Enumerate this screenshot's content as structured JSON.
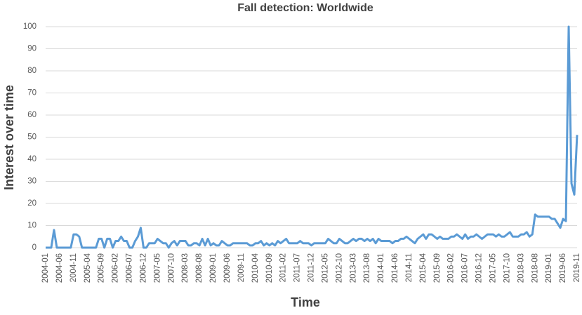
{
  "chart_data": {
    "type": "line",
    "title": "Fall detection: Worldwide",
    "x_label": "Time",
    "y_label": "Interest over time",
    "categories": [
      "2004-01",
      null,
      null,
      null,
      null,
      "2004-06",
      null,
      null,
      null,
      null,
      "2004-11",
      null,
      null,
      null,
      null,
      "2005-04",
      null,
      null,
      null,
      null,
      "2005-09",
      null,
      null,
      null,
      null,
      "2006-02",
      null,
      null,
      null,
      null,
      "2006-07",
      null,
      null,
      null,
      null,
      "2006-12",
      null,
      null,
      null,
      null,
      "2007-05",
      null,
      null,
      null,
      null,
      "2007-10",
      null,
      null,
      null,
      null,
      "2008-03",
      null,
      null,
      null,
      null,
      "2008-08",
      null,
      null,
      null,
      null,
      "2009-01",
      null,
      null,
      null,
      null,
      "2009-06",
      null,
      null,
      null,
      null,
      "2009-11",
      null,
      null,
      null,
      null,
      "2010-04",
      null,
      null,
      null,
      null,
      "2010-09",
      null,
      null,
      null,
      null,
      "2011-02",
      null,
      null,
      null,
      null,
      "2011-07",
      null,
      null,
      null,
      null,
      "2011-12",
      null,
      null,
      null,
      null,
      "2012-05",
      null,
      null,
      null,
      null,
      "2012-10",
      null,
      null,
      null,
      null,
      "2013-03",
      null,
      null,
      null,
      null,
      "2013-08",
      null,
      null,
      null,
      null,
      "2014-01",
      null,
      null,
      null,
      null,
      "2014-06",
      null,
      null,
      null,
      null,
      "2014-11",
      null,
      null,
      null,
      null,
      "2015-04",
      null,
      null,
      null,
      null,
      "2015-09",
      null,
      null,
      null,
      null,
      "2016-02",
      null,
      null,
      null,
      null,
      "2016-07",
      null,
      null,
      null,
      null,
      "2016-12",
      null,
      null,
      null,
      null,
      "2017-05",
      null,
      null,
      null,
      null,
      "2017-10",
      null,
      null,
      null,
      null,
      "2018-03",
      null,
      null,
      null,
      null,
      "2018-08",
      null,
      null,
      null,
      null,
      "2019-01",
      null,
      null,
      null,
      null,
      "2019-06",
      null,
      null,
      null,
      null,
      "2019-11"
    ],
    "values": [
      0,
      0,
      0,
      8,
      0,
      0,
      0,
      0,
      0,
      0,
      6,
      6,
      5,
      0,
      0,
      0,
      0,
      0,
      0,
      4,
      4,
      0,
      4,
      4,
      0,
      3,
      3,
      5,
      3,
      3,
      0,
      0,
      3,
      5,
      9,
      0,
      0,
      2,
      2,
      2,
      4,
      3,
      2,
      2,
      0,
      2,
      3,
      1,
      3,
      3,
      3,
      1,
      1,
      2,
      2,
      1,
      4,
      1,
      4,
      1,
      2,
      1,
      1,
      3,
      2,
      1,
      1,
      2,
      2,
      2,
      2,
      2,
      2,
      1,
      1,
      2,
      2,
      3,
      1,
      2,
      1,
      2,
      1,
      3,
      2,
      3,
      4,
      2,
      2,
      2,
      2,
      3,
      2,
      2,
      2,
      1,
      2,
      2,
      2,
      2,
      2,
      4,
      3,
      2,
      2,
      4,
      3,
      2,
      2,
      3,
      4,
      3,
      4,
      4,
      3,
      4,
      3,
      4,
      2,
      4,
      3,
      3,
      3,
      3,
      2,
      3,
      3,
      4,
      4,
      5,
      4,
      3,
      2,
      4,
      5,
      6,
      4,
      6,
      6,
      5,
      4,
      5,
      4,
      4,
      4,
      5,
      5,
      6,
      5,
      4,
      6,
      4,
      5,
      5,
      6,
      5,
      4,
      5,
      6,
      6,
      6,
      5,
      6,
      5,
      5,
      6,
      7,
      5,
      5,
      5,
      6,
      6,
      7,
      5,
      6,
      15,
      14,
      14,
      14,
      14,
      14,
      13,
      13,
      11,
      9,
      13,
      12,
      100,
      29,
      24,
      51
    ],
    "color": "#5b9bd5",
    "ylim": [
      0,
      100
    ],
    "yticks": [
      0,
      10,
      20,
      30,
      40,
      50,
      60,
      70,
      80,
      90,
      100
    ],
    "grid": true
  }
}
